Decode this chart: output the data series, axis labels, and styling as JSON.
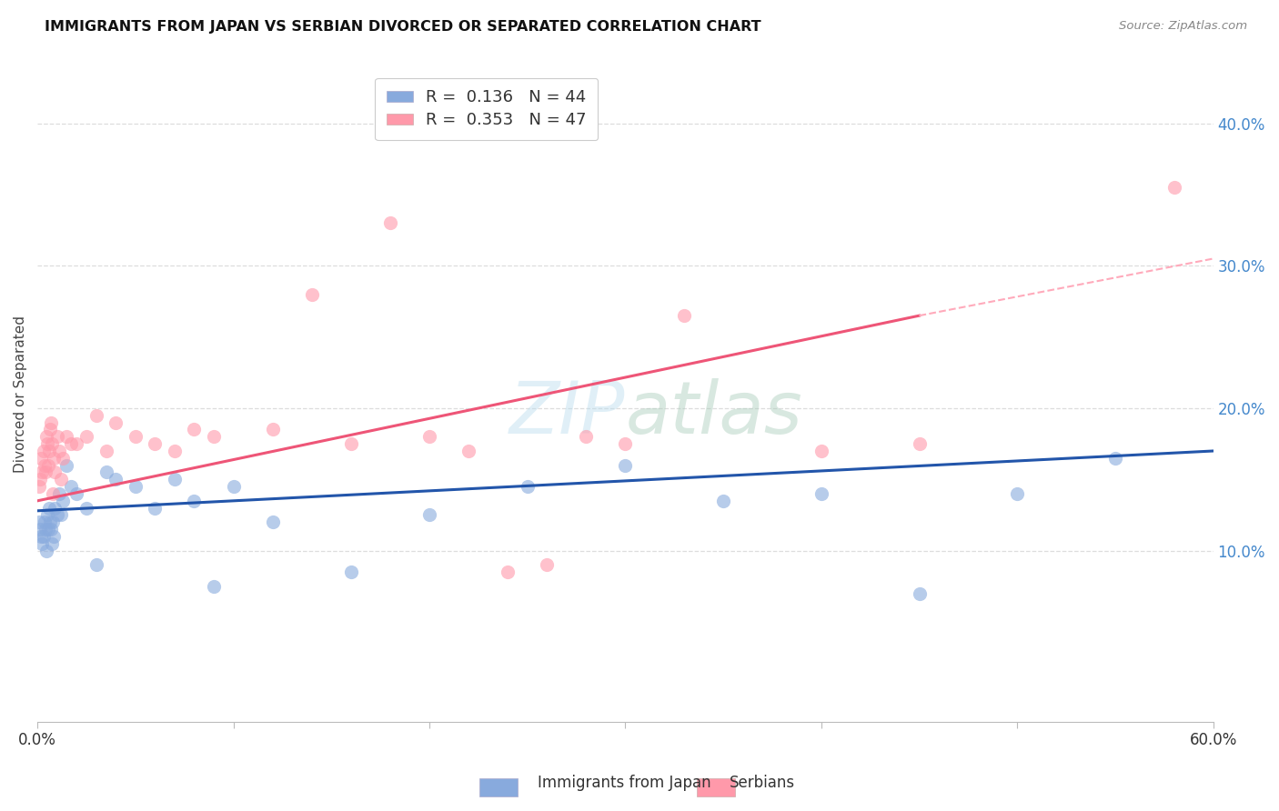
{
  "title": "IMMIGRANTS FROM JAPAN VS SERBIAN DIVORCED OR SEPARATED CORRELATION CHART",
  "source": "Source: ZipAtlas.com",
  "ylabel": "Divorced or Separated",
  "right_yticks": [
    10.0,
    20.0,
    30.0,
    40.0
  ],
  "xlim": [
    0.0,
    60.0
  ],
  "ylim": [
    -2.0,
    44.0
  ],
  "legend_entry1": "R =  0.136   N = 44",
  "legend_entry2": "R =  0.353   N = 47",
  "legend_label1": "Immigrants from Japan",
  "legend_label2": "Serbians",
  "blue_scatter_color": "#88AADD",
  "pink_scatter_color": "#FF99AA",
  "blue_line_color": "#2255AA",
  "pink_line_color": "#EE5577",
  "pink_dash_color": "#FFAABB",
  "background_color": "#FFFFFF",
  "grid_color": "#DDDDDD",
  "japan_x": [
    0.1,
    0.15,
    0.2,
    0.25,
    0.3,
    0.35,
    0.4,
    0.45,
    0.5,
    0.55,
    0.6,
    0.65,
    0.7,
    0.75,
    0.8,
    0.85,
    0.9,
    1.0,
    1.1,
    1.2,
    1.3,
    1.5,
    1.7,
    2.0,
    2.5,
    3.0,
    3.5,
    4.0,
    5.0,
    6.0,
    7.0,
    8.0,
    9.0,
    10.0,
    12.0,
    16.0,
    20.0,
    25.0,
    30.0,
    35.0,
    40.0,
    45.0,
    50.0,
    55.0
  ],
  "japan_y": [
    12.0,
    11.5,
    11.0,
    10.5,
    11.0,
    12.0,
    11.5,
    10.0,
    12.5,
    11.5,
    13.0,
    12.0,
    11.5,
    10.5,
    12.0,
    11.0,
    13.0,
    12.5,
    14.0,
    12.5,
    13.5,
    16.0,
    14.5,
    14.0,
    13.0,
    9.0,
    15.5,
    15.0,
    14.5,
    13.0,
    15.0,
    13.5,
    7.5,
    14.5,
    12.0,
    8.5,
    12.5,
    14.5,
    16.0,
    13.5,
    14.0,
    7.0,
    14.0,
    16.5
  ],
  "serbian_x": [
    0.1,
    0.15,
    0.2,
    0.25,
    0.3,
    0.35,
    0.4,
    0.45,
    0.5,
    0.55,
    0.6,
    0.65,
    0.7,
    0.75,
    0.8,
    0.85,
    0.9,
    1.0,
    1.1,
    1.2,
    1.3,
    1.5,
    1.7,
    2.0,
    2.5,
    3.0,
    3.5,
    4.0,
    5.0,
    6.0,
    7.0,
    8.0,
    9.0,
    12.0,
    14.0,
    16.0,
    18.0,
    20.0,
    22.0,
    24.0,
    26.0,
    28.0,
    30.0,
    33.0,
    40.0,
    45.0,
    58.0
  ],
  "serbian_y": [
    14.5,
    15.0,
    16.5,
    15.5,
    17.0,
    16.0,
    15.5,
    18.0,
    17.5,
    16.0,
    17.0,
    18.5,
    19.0,
    17.5,
    14.0,
    16.5,
    15.5,
    18.0,
    17.0,
    15.0,
    16.5,
    18.0,
    17.5,
    17.5,
    18.0,
    19.5,
    17.0,
    19.0,
    18.0,
    17.5,
    17.0,
    18.5,
    18.0,
    18.5,
    28.0,
    17.5,
    33.0,
    18.0,
    17.0,
    8.5,
    9.0,
    18.0,
    17.5,
    26.5,
    17.0,
    17.5,
    35.5
  ],
  "japan_reg_x0": 0.0,
  "japan_reg_y0": 12.8,
  "japan_reg_x1": 60.0,
  "japan_reg_y1": 17.0,
  "serbian_reg_x0": 0.0,
  "serbian_reg_y0": 13.5,
  "serbian_reg_x1": 45.0,
  "serbian_reg_y1": 26.5,
  "serbian_dash_x0": 45.0,
  "serbian_dash_y0": 26.5,
  "serbian_dash_x1": 60.0,
  "serbian_dash_y1": 30.5
}
